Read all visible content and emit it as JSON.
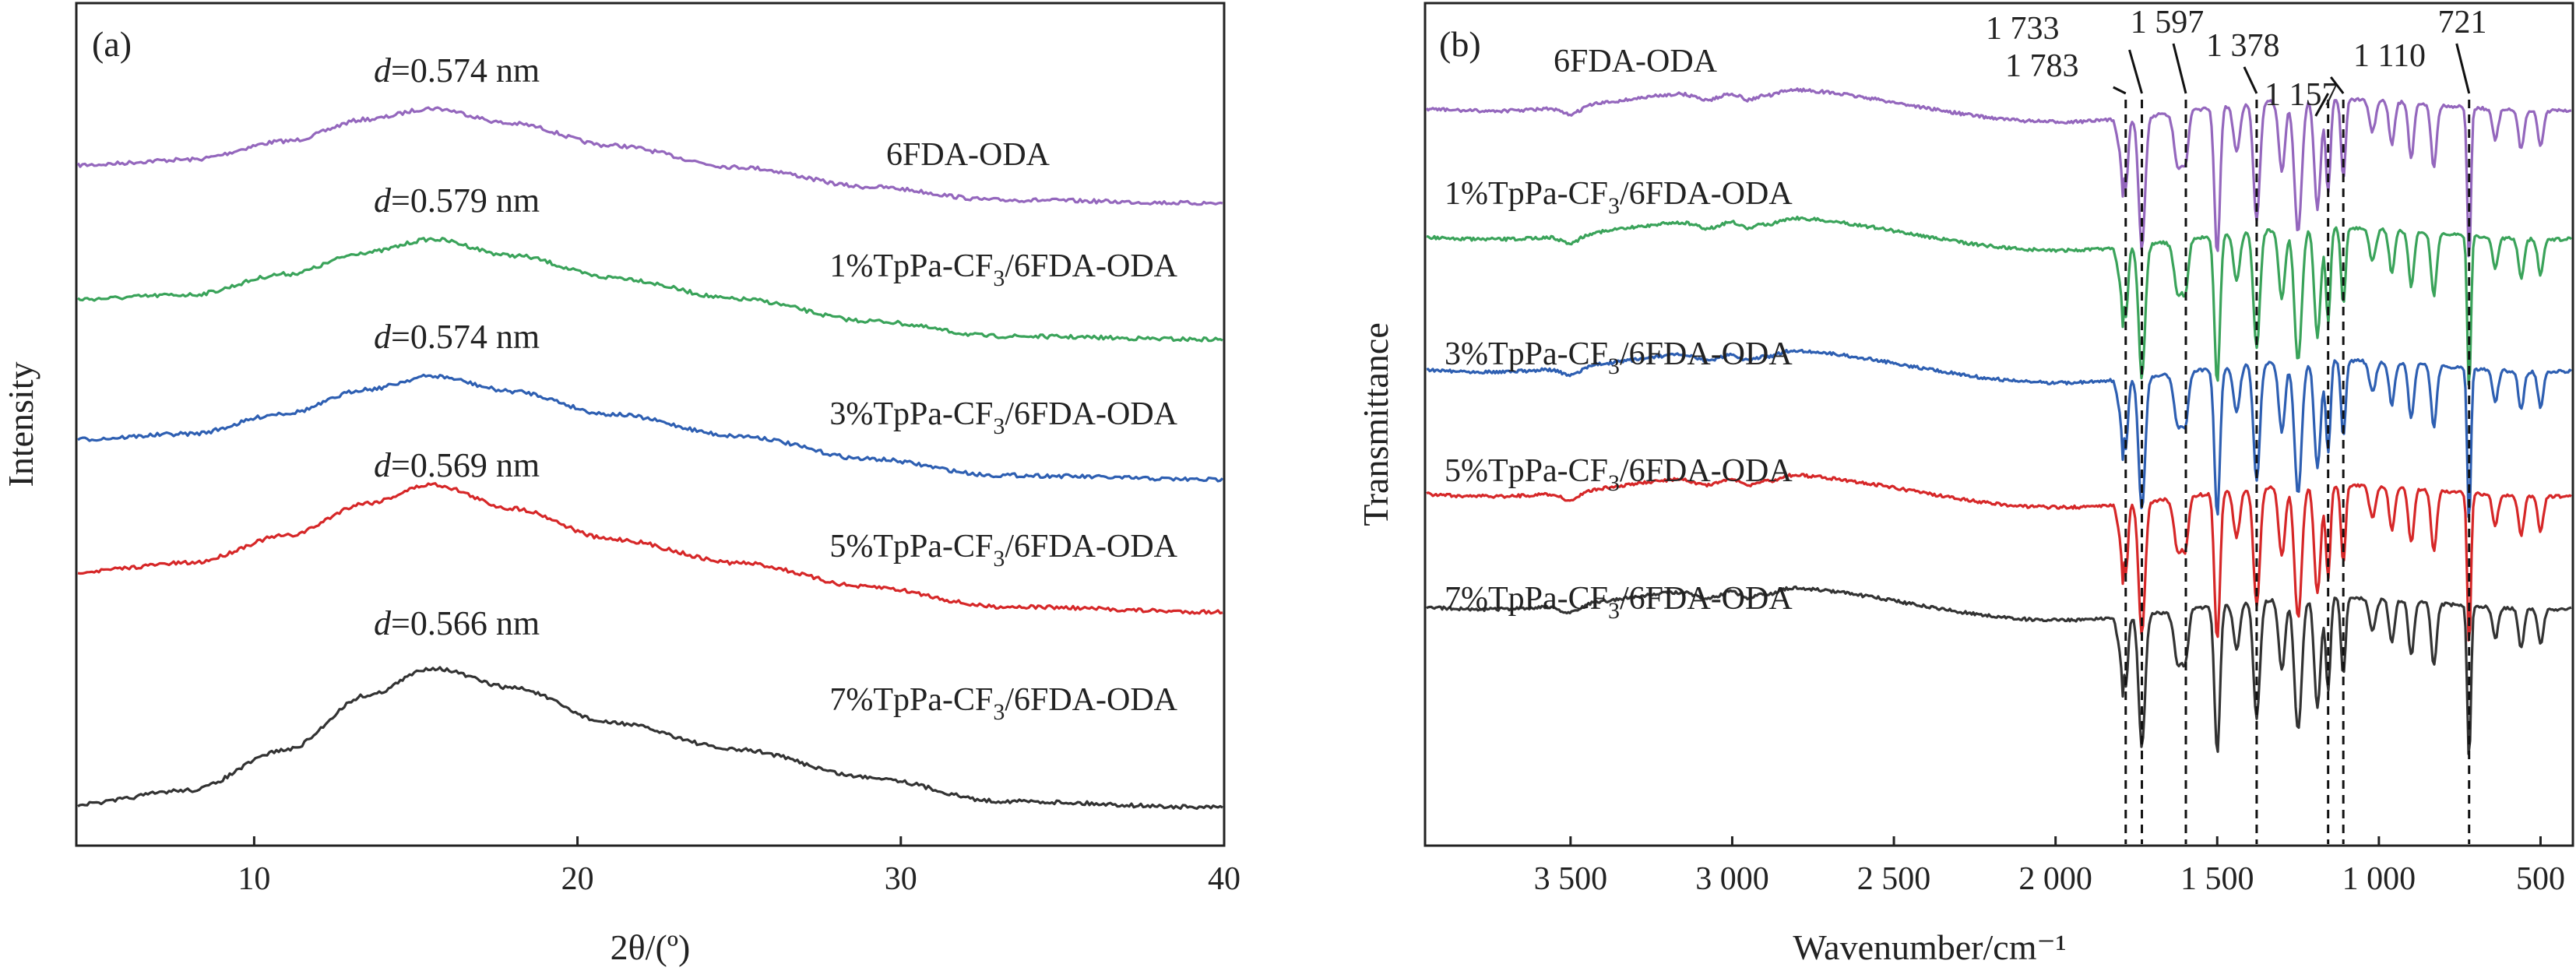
{
  "colors": {
    "purple": "#9467bd",
    "green": "#3aa35a",
    "blue": "#2e5fb2",
    "red": "#d62728",
    "black": "#333333"
  },
  "chart_data": [
    {
      "type": "line",
      "panel_label": "(a)",
      "xlabel": "2θ/(º)",
      "ylabel": "Intensity",
      "xlim": [
        4.5,
        40
      ],
      "xticks": [
        10,
        20,
        30,
        40
      ],
      "yticks_shown": false,
      "series": [
        {
          "name": "6FDA-ODA",
          "color_key": "purple",
          "d_label": "0.574 nm",
          "x": [
            4.5,
            8,
            11,
            13.5,
            15.5,
            18,
            21,
            25,
            29,
            33,
            40
          ],
          "y": [
            0.4,
            0.45,
            0.62,
            0.82,
            0.92,
            0.78,
            0.58,
            0.38,
            0.2,
            0.08,
            0.05
          ]
        },
        {
          "name": "1%TpPa-CF3/6FDA-ODA",
          "color_key": "green",
          "d_label": "0.579 nm",
          "x": [
            4.5,
            8,
            11,
            13.5,
            15.5,
            18,
            21,
            25,
            29,
            33,
            40
          ],
          "y": [
            0.42,
            0.46,
            0.65,
            0.85,
            0.97,
            0.82,
            0.62,
            0.42,
            0.22,
            0.08,
            0.05
          ]
        },
        {
          "name": "3%TpPa-CF3/6FDA-ODA",
          "color_key": "blue",
          "d_label": "0.574 nm",
          "x": [
            4.5,
            8,
            11,
            13.5,
            15.5,
            18,
            21,
            25,
            29,
            33,
            40
          ],
          "y": [
            0.42,
            0.47,
            0.66,
            0.88,
            1.0,
            0.86,
            0.65,
            0.45,
            0.24,
            0.09,
            0.05
          ]
        },
        {
          "name": "5%TpPa-CF3/6FDA-ODA",
          "color_key": "red",
          "d_label": "0.569 nm",
          "x": [
            4.5,
            8,
            11,
            13.5,
            15.5,
            18,
            21,
            25,
            29,
            33,
            40
          ],
          "y": [
            0.42,
            0.5,
            0.75,
            1.05,
            1.22,
            1.0,
            0.72,
            0.5,
            0.28,
            0.1,
            0.05
          ]
        },
        {
          "name": "7%TpPa-CF3/6FDA-ODA",
          "color_key": "black",
          "d_label": "0.566 nm",
          "x": [
            4.5,
            8,
            11,
            13.5,
            15.5,
            18,
            21,
            25,
            29,
            33,
            40
          ],
          "y": [
            0.05,
            0.18,
            0.55,
            1.05,
            1.3,
            1.12,
            0.8,
            0.55,
            0.3,
            0.08,
            0.02
          ]
        }
      ]
    },
    {
      "type": "line",
      "panel_label": "(b)",
      "xlabel": "Wavenumber/cm⁻¹",
      "ylabel": "Transmittance",
      "xlim": [
        3950,
        400
      ],
      "xticks": [
        3500,
        3000,
        2500,
        2000,
        1500,
        1000,
        500
      ],
      "xtick_labels": [
        "3 500",
        "3 000",
        "2 500",
        "2 000",
        "1 500",
        "1 000",
        "500"
      ],
      "yticks_shown": false,
      "peaks": [
        {
          "value": 1783,
          "label": "1 783"
        },
        {
          "value": 1733,
          "label": "1 733"
        },
        {
          "value": 1597,
          "label": "1 597"
        },
        {
          "value": 1378,
          "label": "1 378"
        },
        {
          "value": 1157,
          "label": "1 157"
        },
        {
          "value": 1110,
          "label": "1 110"
        },
        {
          "value": 721,
          "label": "721"
        }
      ],
      "series": [
        {
          "name": "6FDA-ODA",
          "color_key": "purple"
        },
        {
          "name": "1%TpPa-CF3/6FDA-ODA",
          "color_key": "green"
        },
        {
          "name": "3%TpPa-CF3/6FDA-ODA",
          "color_key": "blue"
        },
        {
          "name": "5%TpPa-CF3/6FDA-ODA",
          "color_key": "red"
        },
        {
          "name": "7%TpPa-CF3/6FDA-ODA",
          "color_key": "black"
        }
      ]
    }
  ]
}
